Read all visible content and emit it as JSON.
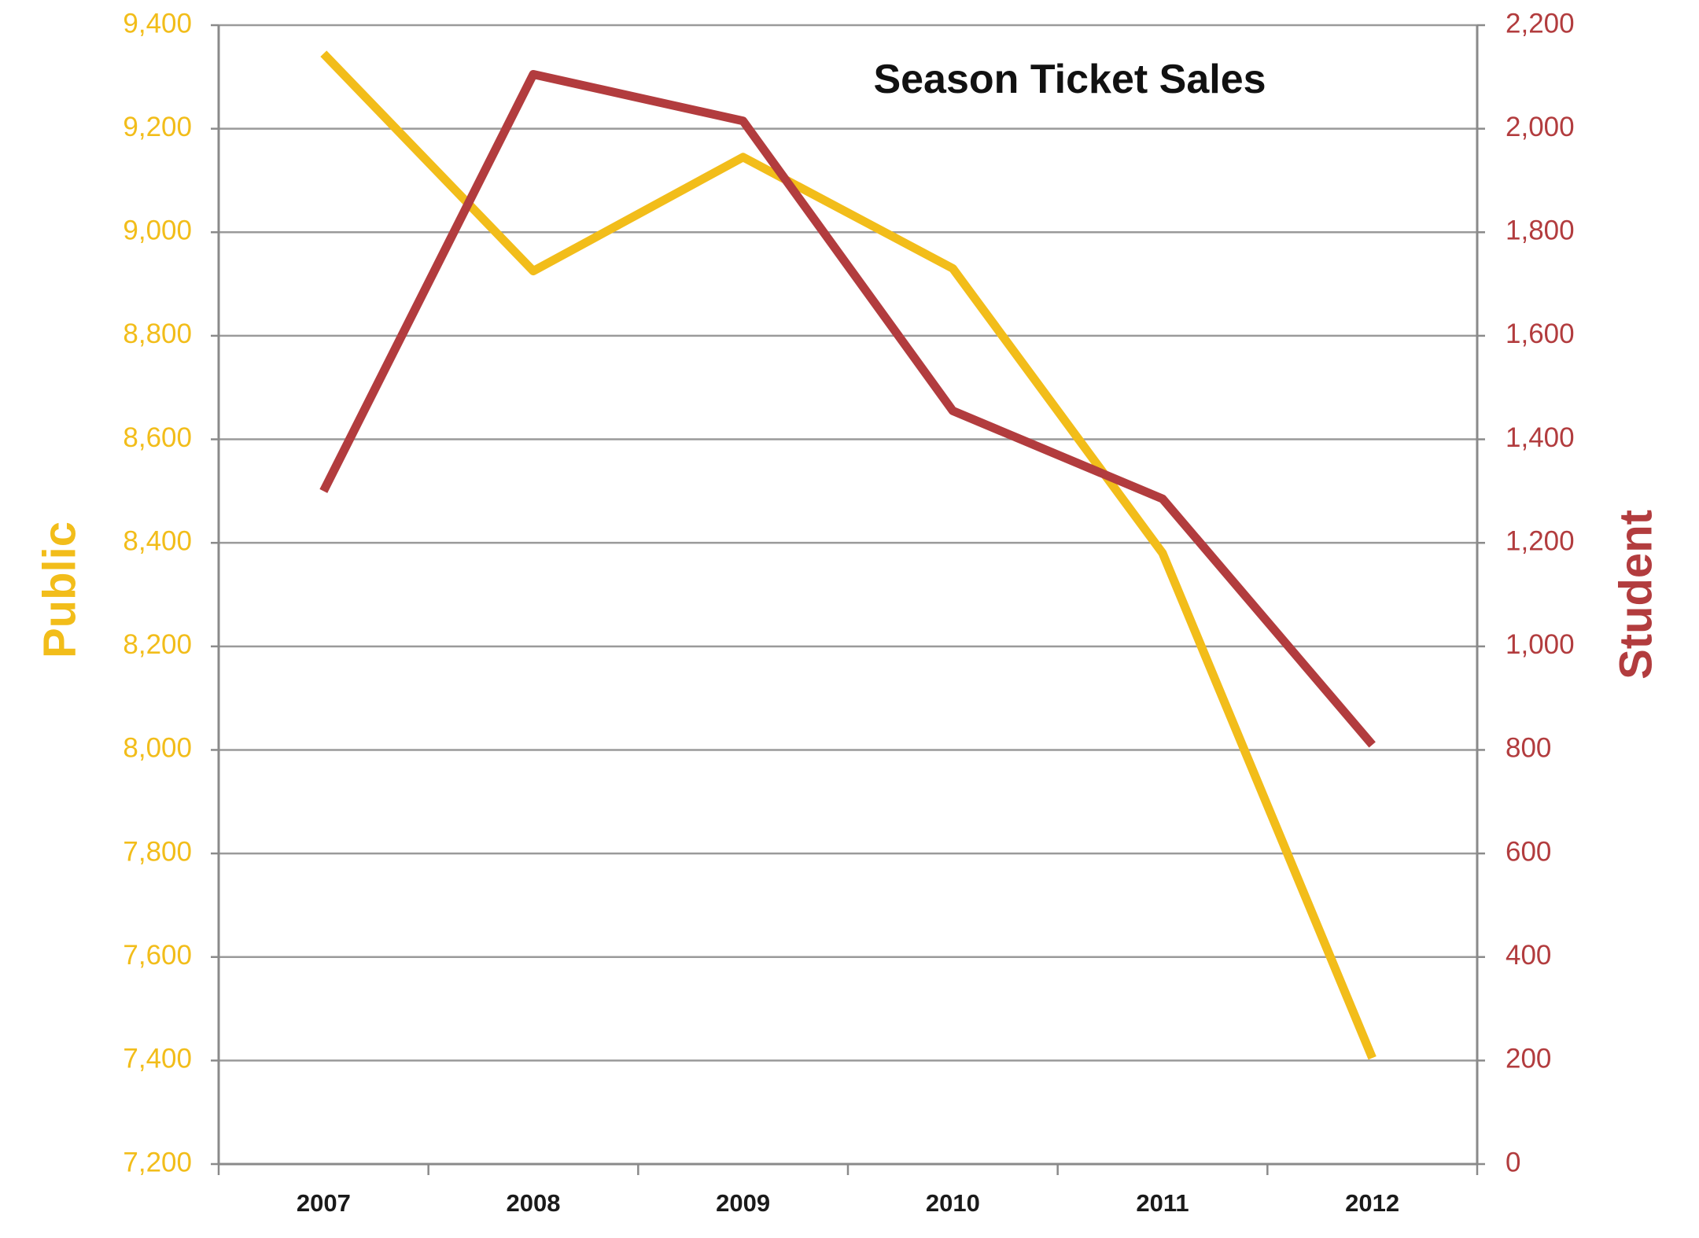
{
  "chart_data": {
    "type": "line",
    "title": "Season Ticket Sales",
    "categories": [
      "2007",
      "2008",
      "2009",
      "2010",
      "2011",
      "2012"
    ],
    "y_left": {
      "label": "Public",
      "range": [
        7200,
        9400
      ],
      "ticks": [
        "7,200",
        "7,400",
        "7,600",
        "7,800",
        "8,000",
        "8,200",
        "8,400",
        "8,600",
        "8,800",
        "9,000",
        "9,200",
        "9,400"
      ],
      "color": "#f2bd1a"
    },
    "y_right": {
      "label": "Student",
      "range": [
        0,
        2200
      ],
      "ticks": [
        "0",
        "200",
        "400",
        "600",
        "800",
        "1,000",
        "1,200",
        "1,400",
        "1,600",
        "1,800",
        "2,000",
        "2,200"
      ],
      "color": "#b23c3e"
    },
    "series": [
      {
        "name": "Public",
        "axis": "left",
        "color": "#f2bd1a",
        "values": [
          9345,
          8925,
          9145,
          8930,
          8380,
          7405
        ]
      },
      {
        "name": "Student",
        "axis": "right",
        "color": "#b23c3e",
        "values": [
          1300,
          2105,
          2015,
          1455,
          1285,
          810
        ]
      }
    ],
    "grid": true,
    "legend": "none"
  }
}
